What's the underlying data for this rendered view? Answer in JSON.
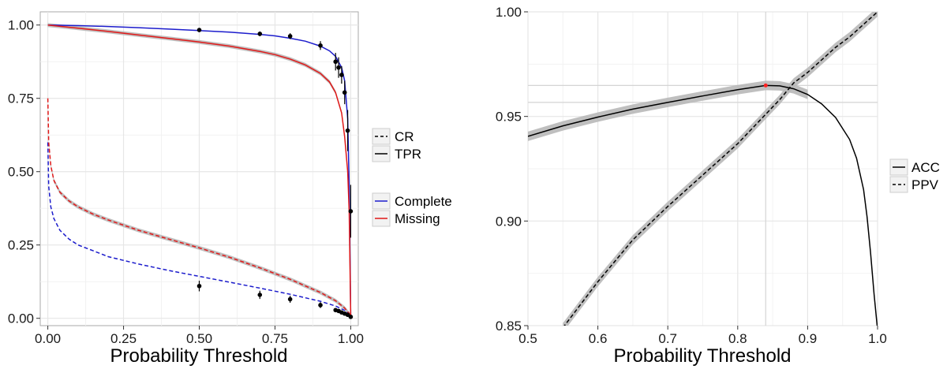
{
  "chart_data": [
    {
      "type": "line",
      "xlabel": "Probability Threshold",
      "ylabel": "",
      "xlim": [
        -0.025,
        1.025
      ],
      "ylim": [
        -0.025,
        1.045
      ],
      "xticks": [
        "0.00",
        "0.25",
        "0.50",
        "0.75",
        "1.00"
      ],
      "yticks": [
        "0.00",
        "0.25",
        "0.50",
        "0.75",
        "1.00"
      ],
      "grid": true,
      "legend_position": "right",
      "legends": [
        {
          "entries": [
            {
              "label": "CR",
              "linetype": "dashed"
            },
            {
              "label": "TPR",
              "linetype": "solid"
            }
          ]
        },
        {
          "entries": [
            {
              "label": "Complete",
              "color": "#1c1ccc"
            },
            {
              "label": "Missing",
              "color": "#e01818"
            }
          ]
        }
      ],
      "series": [
        {
          "name": "TPR Complete",
          "color": "#1c1ccc",
          "linetype": "solid",
          "x": [
            0,
            0.1,
            0.2,
            0.3,
            0.4,
            0.5,
            0.6,
            0.7,
            0.75,
            0.8,
            0.85,
            0.9,
            0.93,
            0.95,
            0.97,
            0.98,
            0.99,
            0.995,
            1.0
          ],
          "y": [
            1.0,
            0.998,
            0.995,
            0.991,
            0.986,
            0.981,
            0.976,
            0.968,
            0.963,
            0.955,
            0.945,
            0.928,
            0.912,
            0.893,
            0.855,
            0.81,
            0.68,
            0.45,
            0.01
          ]
        },
        {
          "name": "TPR Missing",
          "color": "#e01818",
          "linetype": "solid",
          "x": [
            0,
            0.1,
            0.2,
            0.3,
            0.4,
            0.5,
            0.6,
            0.7,
            0.75,
            0.8,
            0.85,
            0.9,
            0.93,
            0.95,
            0.97,
            0.98,
            0.99,
            0.995,
            1.0
          ],
          "y": [
            1.0,
            0.989,
            0.978,
            0.966,
            0.954,
            0.942,
            0.928,
            0.91,
            0.899,
            0.884,
            0.864,
            0.835,
            0.806,
            0.77,
            0.7,
            0.62,
            0.5,
            0.36,
            0.01
          ]
        },
        {
          "name": "CR Complete",
          "color": "#1c1ccc",
          "linetype": "dashed",
          "x": [
            0.0,
            0.003,
            0.01,
            0.02,
            0.04,
            0.07,
            0.1,
            0.15,
            0.2,
            0.3,
            0.4,
            0.5,
            0.6,
            0.7,
            0.8,
            0.9,
            0.95,
            0.98,
            1.0
          ],
          "y": [
            0.6,
            0.45,
            0.38,
            0.34,
            0.3,
            0.27,
            0.25,
            0.23,
            0.21,
            0.185,
            0.163,
            0.143,
            0.123,
            0.103,
            0.082,
            0.058,
            0.042,
            0.027,
            0.01
          ]
        },
        {
          "name": "CR Missing",
          "color": "#e01818",
          "linetype": "dashed",
          "x": [
            0.0,
            0.003,
            0.01,
            0.02,
            0.04,
            0.07,
            0.1,
            0.15,
            0.2,
            0.3,
            0.4,
            0.5,
            0.6,
            0.7,
            0.8,
            0.9,
            0.95,
            0.98,
            1.0
          ],
          "y": [
            0.75,
            0.6,
            0.52,
            0.47,
            0.43,
            0.4,
            0.38,
            0.355,
            0.335,
            0.3,
            0.27,
            0.24,
            0.208,
            0.172,
            0.133,
            0.088,
            0.06,
            0.035,
            0.01
          ]
        }
      ],
      "points": [
        {
          "x": 0.5,
          "y": 0.983,
          "err": 0.005
        },
        {
          "x": 0.7,
          "y": 0.97,
          "err": 0.008
        },
        {
          "x": 0.8,
          "y": 0.962,
          "err": 0.01
        },
        {
          "x": 0.9,
          "y": 0.93,
          "err": 0.015
        },
        {
          "x": 0.95,
          "y": 0.875,
          "err": 0.03
        },
        {
          "x": 0.96,
          "y": 0.855,
          "err": 0.035
        },
        {
          "x": 0.97,
          "y": 0.83,
          "err": 0.03
        },
        {
          "x": 0.98,
          "y": 0.77,
          "err": 0.04
        },
        {
          "x": 0.99,
          "y": 0.64,
          "err": 0.07
        },
        {
          "x": 1.0,
          "y": 0.365,
          "err": 0.09
        },
        {
          "x": 0.5,
          "y": 0.11,
          "err": 0.018
        },
        {
          "x": 0.7,
          "y": 0.08,
          "err": 0.014
        },
        {
          "x": 0.8,
          "y": 0.065,
          "err": 0.012
        },
        {
          "x": 0.9,
          "y": 0.045,
          "err": 0.01
        },
        {
          "x": 0.95,
          "y": 0.028,
          "err": 0.004
        },
        {
          "x": 0.96,
          "y": 0.025,
          "err": 0.003
        },
        {
          "x": 0.97,
          "y": 0.02,
          "err": 0.003
        },
        {
          "x": 0.98,
          "y": 0.016,
          "err": 0.003
        },
        {
          "x": 0.99,
          "y": 0.012,
          "err": 0.003
        },
        {
          "x": 1.0,
          "y": 0.005,
          "err": 0.002
        }
      ]
    },
    {
      "type": "line",
      "xlabel": "Probability Threshold",
      "ylabel": "",
      "xlim": [
        0.5,
        1.0
      ],
      "ylim": [
        0.85,
        1.0
      ],
      "xticks": [
        "0.5",
        "0.6",
        "0.7",
        "0.8",
        "0.9",
        "1.0"
      ],
      "yticks": [
        "0.85",
        "0.90",
        "0.95",
        "1.00"
      ],
      "grid": true,
      "legend_position": "right",
      "legends": [
        {
          "entries": [
            {
              "label": "ACC",
              "linetype": "solid"
            },
            {
              "label": "PPV",
              "linetype": "dashed"
            }
          ]
        }
      ],
      "reference_lines": {
        "vertical": [
          0.84
        ],
        "horizontal": [
          0.9648,
          0.9567
        ]
      },
      "marker": {
        "x": 0.84,
        "y": 0.9648,
        "color": "#ff2020"
      },
      "series": [
        {
          "name": "ACC",
          "color": "#000000",
          "linetype": "solid",
          "x": [
            0.5,
            0.55,
            0.6,
            0.65,
            0.7,
            0.75,
            0.8,
            0.84,
            0.86,
            0.88,
            0.9,
            0.92,
            0.94,
            0.96,
            0.97,
            0.98,
            0.985,
            0.99,
            0.995,
            1.0
          ],
          "y": [
            0.9405,
            0.9455,
            0.9497,
            0.9535,
            0.9567,
            0.9598,
            0.9628,
            0.9648,
            0.9646,
            0.9632,
            0.9605,
            0.956,
            0.9495,
            0.939,
            0.93,
            0.915,
            0.902,
            0.885,
            0.865,
            0.848
          ]
        },
        {
          "name": "PPV",
          "color": "#000000",
          "linetype": "dashed",
          "x": [
            0.55,
            0.6,
            0.65,
            0.7,
            0.75,
            0.8,
            0.84,
            0.86,
            0.88,
            0.9,
            0.92,
            0.94,
            0.96,
            0.98,
            1.0
          ],
          "y": [
            0.849,
            0.871,
            0.891,
            0.907,
            0.922,
            0.937,
            0.951,
            0.958,
            0.966,
            0.971,
            0.977,
            0.983,
            0.988,
            0.994,
            1.0
          ]
        }
      ]
    }
  ]
}
